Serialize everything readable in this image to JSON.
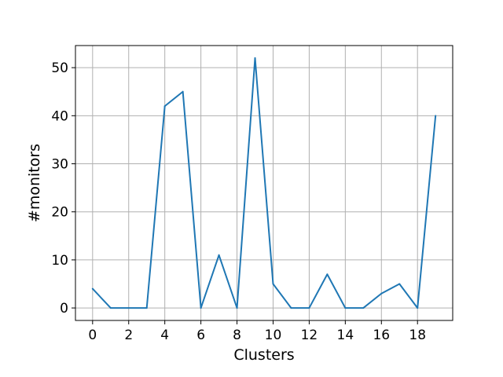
{
  "chart_data": {
    "type": "line",
    "title": "",
    "xlabel": "Clusters",
    "ylabel": "#monitors",
    "x": [
      0,
      1,
      2,
      3,
      4,
      5,
      6,
      7,
      8,
      9,
      10,
      11,
      12,
      13,
      14,
      15,
      16,
      17,
      18,
      19
    ],
    "series": [
      {
        "values": [
          4,
          0,
          0,
          0,
          42,
          45,
          0,
          11,
          0,
          52,
          5,
          0,
          0,
          7,
          0,
          0,
          3,
          5,
          0,
          40
        ],
        "color": "#1f77b4"
      }
    ],
    "xticks": [
      0,
      2,
      4,
      6,
      8,
      10,
      12,
      14,
      16,
      18
    ],
    "yticks": [
      0,
      10,
      20,
      30,
      40,
      50
    ],
    "xlim": [
      -0.95,
      19.95
    ],
    "ylim": [
      -2.6,
      54.6
    ],
    "grid": true
  }
}
